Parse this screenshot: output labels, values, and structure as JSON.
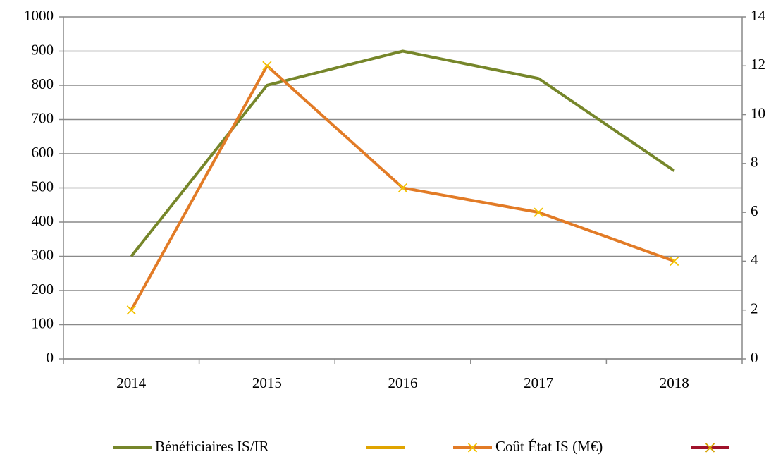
{
  "chart_data": {
    "type": "line",
    "categories": [
      "2014",
      "2015",
      "2016",
      "2017",
      "2018"
    ],
    "series": [
      {
        "name": "Bénéficiaires IS/IR",
        "color": "#76862a",
        "values": [
          300,
          800,
          900,
          820,
          550
        ]
      },
      {
        "color": "#e0a400",
        "values": [
          null,
          null,
          null,
          null,
          null
        ]
      },
      {
        "name": "Coût État IS (M€)",
        "color": "#e27b26",
        "marker": "x",
        "marker_color": "#f2c200",
        "axis": "y2",
        "values": [
          2,
          12,
          7,
          6,
          4
        ]
      },
      {
        "color": "#a0122a",
        "marker": "x",
        "marker_color": "#d4a000",
        "axis": "y2",
        "values": [
          null,
          null,
          null,
          null,
          null
        ]
      }
    ],
    "ylim": [
      0,
      1000
    ],
    "yticks": [
      0,
      100,
      200,
      300,
      400,
      500,
      600,
      700,
      800,
      900,
      1000
    ],
    "y2lim": [
      0,
      14
    ],
    "y2ticks": [
      0,
      2,
      4,
      6,
      8,
      10,
      12,
      14
    ],
    "grid": true,
    "legend": "bottom"
  }
}
